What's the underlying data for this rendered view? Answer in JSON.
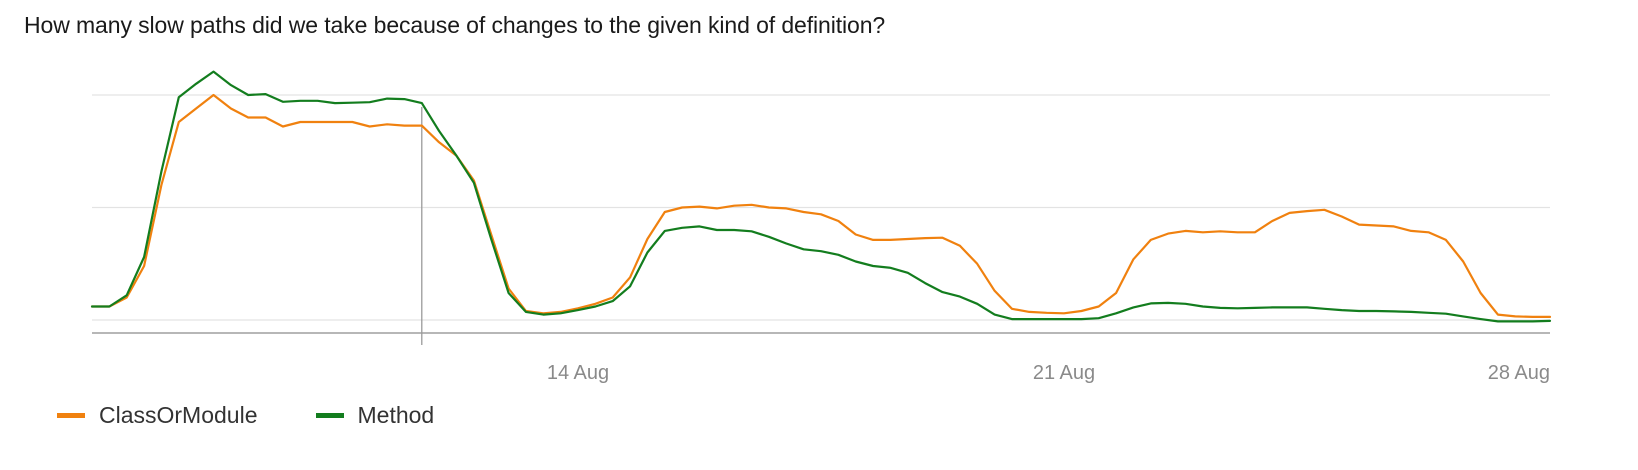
{
  "page": {
    "title": "How many slow paths did we take because of changes to the given kind of definition?"
  },
  "chart_data": {
    "type": "line",
    "title": "How many slow paths did we take because of changes to the given kind of definition?",
    "xlabel": "",
    "ylabel": "",
    "x_start": "2025-08-07",
    "x_end": "2025-08-28",
    "x_ticks": [
      {
        "date": "2025-08-14",
        "label": "14 Aug"
      },
      {
        "date": "2025-08-21",
        "label": "21 Aug"
      },
      {
        "date": "2025-08-28",
        "label": "28 Aug"
      }
    ],
    "gridlines_y": [
      0.25,
      0.5
    ],
    "ylim": [
      0,
      0.94
    ],
    "grid": true,
    "y_tick_labels": false,
    "hover_marker_date": "2025-08-11 18:00",
    "legend_position": "bottom-left",
    "series": [
      {
        "name": "ClassOrModule",
        "color": "#f0810f",
        "points": [
          [
            "2025-08-07 00:00",
            0.03
          ],
          [
            "2025-08-07 06:00",
            0.03
          ],
          [
            "2025-08-07 12:00",
            0.05
          ],
          [
            "2025-08-07 18:00",
            0.12
          ],
          [
            "2025-08-08 00:00",
            0.3
          ],
          [
            "2025-08-08 06:00",
            0.44
          ],
          [
            "2025-08-08 12:00",
            0.47
          ],
          [
            "2025-08-08 18:00",
            0.5
          ],
          [
            "2025-08-09 00:00",
            0.47
          ],
          [
            "2025-08-09 06:00",
            0.45
          ],
          [
            "2025-08-09 12:00",
            0.45
          ],
          [
            "2025-08-09 18:00",
            0.43
          ],
          [
            "2025-08-10 00:00",
            0.44
          ],
          [
            "2025-08-10 06:00",
            0.44
          ],
          [
            "2025-08-10 12:00",
            0.44
          ],
          [
            "2025-08-10 18:00",
            0.44
          ],
          [
            "2025-08-11 00:00",
            0.43
          ],
          [
            "2025-08-11 06:00",
            0.435
          ],
          [
            "2025-08-11 12:00",
            0.432
          ],
          [
            "2025-08-11 18:00",
            0.432
          ],
          [
            "2025-08-12 00:00",
            0.395
          ],
          [
            "2025-08-12 06:00",
            0.365
          ],
          [
            "2025-08-12 12:00",
            0.31
          ],
          [
            "2025-08-12 18:00",
            0.19
          ],
          [
            "2025-08-13 00:00",
            0.07
          ],
          [
            "2025-08-13 06:00",
            0.02
          ],
          [
            "2025-08-13 12:00",
            0.015
          ],
          [
            "2025-08-13 18:00",
            0.018
          ],
          [
            "2025-08-14 00:00",
            0.026
          ],
          [
            "2025-08-14 06:00",
            0.036
          ],
          [
            "2025-08-14 12:00",
            0.05
          ],
          [
            "2025-08-14 18:00",
            0.095
          ],
          [
            "2025-08-15 00:00",
            0.18
          ],
          [
            "2025-08-15 06:00",
            0.24
          ],
          [
            "2025-08-15 12:00",
            0.25
          ],
          [
            "2025-08-15 18:00",
            0.252
          ],
          [
            "2025-08-16 00:00",
            0.248
          ],
          [
            "2025-08-16 06:00",
            0.254
          ],
          [
            "2025-08-16 12:00",
            0.256
          ],
          [
            "2025-08-16 18:00",
            0.25
          ],
          [
            "2025-08-17 00:00",
            0.248
          ],
          [
            "2025-08-17 06:00",
            0.24
          ],
          [
            "2025-08-17 12:00",
            0.235
          ],
          [
            "2025-08-17 18:00",
            0.22
          ],
          [
            "2025-08-18 00:00",
            0.19
          ],
          [
            "2025-08-18 06:00",
            0.178
          ],
          [
            "2025-08-18 12:00",
            0.178
          ],
          [
            "2025-08-18 18:00",
            0.18
          ],
          [
            "2025-08-19 00:00",
            0.182
          ],
          [
            "2025-08-19 06:00",
            0.183
          ],
          [
            "2025-08-19 12:00",
            0.165
          ],
          [
            "2025-08-19 18:00",
            0.125
          ],
          [
            "2025-08-20 00:00",
            0.065
          ],
          [
            "2025-08-20 06:00",
            0.025
          ],
          [
            "2025-08-20 12:00",
            0.018
          ],
          [
            "2025-08-20 18:00",
            0.016
          ],
          [
            "2025-08-21 00:00",
            0.015
          ],
          [
            "2025-08-21 06:00",
            0.02
          ],
          [
            "2025-08-21 12:00",
            0.03
          ],
          [
            "2025-08-21 18:00",
            0.06
          ],
          [
            "2025-08-22 00:00",
            0.135
          ],
          [
            "2025-08-22 06:00",
            0.178
          ],
          [
            "2025-08-22 12:00",
            0.192
          ],
          [
            "2025-08-22 18:00",
            0.198
          ],
          [
            "2025-08-23 00:00",
            0.195
          ],
          [
            "2025-08-23 06:00",
            0.197
          ],
          [
            "2025-08-23 12:00",
            0.195
          ],
          [
            "2025-08-23 18:00",
            0.195
          ],
          [
            "2025-08-24 00:00",
            0.22
          ],
          [
            "2025-08-24 06:00",
            0.238
          ],
          [
            "2025-08-24 12:00",
            0.242
          ],
          [
            "2025-08-24 18:00",
            0.245
          ],
          [
            "2025-08-25 00:00",
            0.23
          ],
          [
            "2025-08-25 06:00",
            0.212
          ],
          [
            "2025-08-25 12:00",
            0.21
          ],
          [
            "2025-08-25 18:00",
            0.208
          ],
          [
            "2025-08-26 00:00",
            0.198
          ],
          [
            "2025-08-26 06:00",
            0.195
          ],
          [
            "2025-08-26 12:00",
            0.178
          ],
          [
            "2025-08-26 18:00",
            0.13
          ],
          [
            "2025-08-27 00:00",
            0.06
          ],
          [
            "2025-08-27 06:00",
            0.012
          ],
          [
            "2025-08-27 12:00",
            0.008
          ],
          [
            "2025-08-27 18:00",
            0.007
          ],
          [
            "2025-08-28 00:00",
            0.007
          ]
        ]
      },
      {
        "name": "Method",
        "color": "#137d1e",
        "points": [
          [
            "2025-08-07 00:00",
            0.03
          ],
          [
            "2025-08-07 06:00",
            0.03
          ],
          [
            "2025-08-07 12:00",
            0.055
          ],
          [
            "2025-08-07 18:00",
            0.14
          ],
          [
            "2025-08-08 00:00",
            0.33
          ],
          [
            "2025-08-08 06:00",
            0.495
          ],
          [
            "2025-08-08 12:00",
            0.525
          ],
          [
            "2025-08-08 18:00",
            0.552
          ],
          [
            "2025-08-09 00:00",
            0.522
          ],
          [
            "2025-08-09 06:00",
            0.5
          ],
          [
            "2025-08-09 12:00",
            0.502
          ],
          [
            "2025-08-09 18:00",
            0.485
          ],
          [
            "2025-08-10 00:00",
            0.487
          ],
          [
            "2025-08-10 06:00",
            0.487
          ],
          [
            "2025-08-10 12:00",
            0.482
          ],
          [
            "2025-08-10 18:00",
            0.483
          ],
          [
            "2025-08-11 00:00",
            0.484
          ],
          [
            "2025-08-11 06:00",
            0.492
          ],
          [
            "2025-08-11 12:00",
            0.491
          ],
          [
            "2025-08-11 18:00",
            0.482
          ],
          [
            "2025-08-12 00:00",
            0.42
          ],
          [
            "2025-08-12 06:00",
            0.365
          ],
          [
            "2025-08-12 12:00",
            0.305
          ],
          [
            "2025-08-12 18:00",
            0.18
          ],
          [
            "2025-08-13 00:00",
            0.06
          ],
          [
            "2025-08-13 06:00",
            0.018
          ],
          [
            "2025-08-13 12:00",
            0.012
          ],
          [
            "2025-08-13 18:00",
            0.015
          ],
          [
            "2025-08-14 00:00",
            0.022
          ],
          [
            "2025-08-14 06:00",
            0.03
          ],
          [
            "2025-08-14 12:00",
            0.042
          ],
          [
            "2025-08-14 18:00",
            0.075
          ],
          [
            "2025-08-15 00:00",
            0.15
          ],
          [
            "2025-08-15 06:00",
            0.198
          ],
          [
            "2025-08-15 12:00",
            0.205
          ],
          [
            "2025-08-15 18:00",
            0.208
          ],
          [
            "2025-08-16 00:00",
            0.2
          ],
          [
            "2025-08-16 06:00",
            0.2
          ],
          [
            "2025-08-16 12:00",
            0.197
          ],
          [
            "2025-08-16 18:00",
            0.185
          ],
          [
            "2025-08-17 00:00",
            0.17
          ],
          [
            "2025-08-17 06:00",
            0.157
          ],
          [
            "2025-08-17 12:00",
            0.153
          ],
          [
            "2025-08-17 18:00",
            0.145
          ],
          [
            "2025-08-18 00:00",
            0.13
          ],
          [
            "2025-08-18 06:00",
            0.12
          ],
          [
            "2025-08-18 12:00",
            0.116
          ],
          [
            "2025-08-18 18:00",
            0.105
          ],
          [
            "2025-08-19 00:00",
            0.082
          ],
          [
            "2025-08-19 06:00",
            0.062
          ],
          [
            "2025-08-19 12:00",
            0.052
          ],
          [
            "2025-08-19 18:00",
            0.036
          ],
          [
            "2025-08-20 00:00",
            0.012
          ],
          [
            "2025-08-20 06:00",
            0.002
          ],
          [
            "2025-08-20 12:00",
            0.002
          ],
          [
            "2025-08-20 18:00",
            0.002
          ],
          [
            "2025-08-21 00:00",
            0.002
          ],
          [
            "2025-08-21 06:00",
            0.002
          ],
          [
            "2025-08-21 12:00",
            0.004
          ],
          [
            "2025-08-21 18:00",
            0.015
          ],
          [
            "2025-08-22 00:00",
            0.028
          ],
          [
            "2025-08-22 06:00",
            0.037
          ],
          [
            "2025-08-22 12:00",
            0.038
          ],
          [
            "2025-08-22 18:00",
            0.036
          ],
          [
            "2025-08-23 00:00",
            0.03
          ],
          [
            "2025-08-23 06:00",
            0.027
          ],
          [
            "2025-08-23 12:00",
            0.026
          ],
          [
            "2025-08-23 18:00",
            0.027
          ],
          [
            "2025-08-24 00:00",
            0.028
          ],
          [
            "2025-08-24 06:00",
            0.028
          ],
          [
            "2025-08-24 12:00",
            0.028
          ],
          [
            "2025-08-24 18:00",
            0.025
          ],
          [
            "2025-08-25 00:00",
            0.022
          ],
          [
            "2025-08-25 06:00",
            0.02
          ],
          [
            "2025-08-25 12:00",
            0.02
          ],
          [
            "2025-08-25 18:00",
            0.019
          ],
          [
            "2025-08-26 00:00",
            0.018
          ],
          [
            "2025-08-26 06:00",
            0.016
          ],
          [
            "2025-08-26 12:00",
            0.014
          ],
          [
            "2025-08-26 18:00",
            0.008
          ],
          [
            "2025-08-27 00:00",
            0.002
          ],
          [
            "2025-08-27 06:00",
            -0.003
          ],
          [
            "2025-08-27 12:00",
            -0.003
          ],
          [
            "2025-08-27 18:00",
            -0.003
          ],
          [
            "2025-08-28 00:00",
            -0.002
          ]
        ]
      }
    ]
  }
}
